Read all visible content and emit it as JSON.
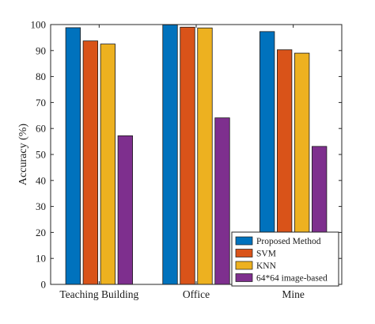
{
  "chart_data": {
    "type": "bar",
    "title": "",
    "xlabel": "",
    "ylabel": "Accuracy (%)",
    "ylim": [
      0,
      100
    ],
    "yticks": [
      0,
      10,
      20,
      30,
      40,
      50,
      60,
      70,
      80,
      90,
      100
    ],
    "categories": [
      "Teaching Building",
      "Office",
      "Mine"
    ],
    "series": [
      {
        "name": "Proposed Method",
        "color": "#0072BD",
        "values": [
          98.8,
          99.9,
          97.3
        ]
      },
      {
        "name": "SVM",
        "color": "#D95319",
        "values": [
          93.7,
          99.0,
          90.3
        ]
      },
      {
        "name": "KNN",
        "color": "#EDB120",
        "values": [
          92.5,
          98.7,
          89.0
        ]
      },
      {
        "name": "64*64 image-based",
        "color": "#7E2F8E",
        "values": [
          57.2,
          64.1,
          53.1
        ]
      }
    ],
    "grid": false,
    "legend_position": "bottom-right"
  }
}
